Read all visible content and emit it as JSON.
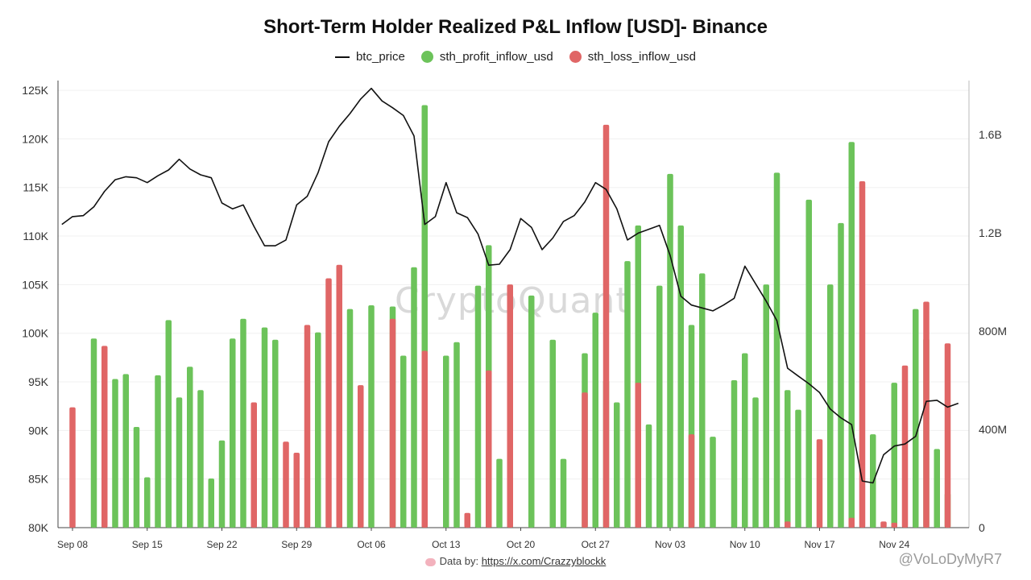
{
  "chart_data": {
    "type": "bar",
    "title": "Short-Term Holder Realized P&L Inflow [USD]- Binance",
    "legend": {
      "position": "top-center",
      "items": [
        {
          "label": "btc_price",
          "kind": "line",
          "color": "#111111"
        },
        {
          "label": "sth_profit_inflow_usd",
          "kind": "dot",
          "color": "#6cc35a"
        },
        {
          "label": "sth_loss_inflow_usd",
          "kind": "dot",
          "color": "#e06666"
        }
      ]
    },
    "y_left": {
      "ylim": [
        80000,
        126000
      ],
      "ticks": [
        80000,
        85000,
        90000,
        95000,
        100000,
        105000,
        110000,
        115000,
        120000,
        125000
      ],
      "tick_labels": [
        "80K",
        "85K",
        "90K",
        "95K",
        "100K",
        "105K",
        "110K",
        "115K",
        "120K",
        "125K"
      ]
    },
    "y_right": {
      "ylim": [
        0,
        1820000000
      ],
      "ticks": [
        0,
        400000000,
        800000000,
        1200000000,
        1600000000
      ],
      "tick_labels": [
        "0",
        "400M",
        "800M",
        "1.2B",
        "1.6B"
      ]
    },
    "x": {
      "start": "2025-09-08",
      "end": "2025-11-30",
      "ticks": [
        {
          "day": 0,
          "label": "Sep 08"
        },
        {
          "day": 7,
          "label": "Sep 15"
        },
        {
          "day": 14,
          "label": "Sep 22"
        },
        {
          "day": 21,
          "label": "Sep 29"
        },
        {
          "day": 28,
          "label": "Oct 06"
        },
        {
          "day": 35,
          "label": "Oct 13"
        },
        {
          "day": 42,
          "label": "Oct 20"
        },
        {
          "day": 49,
          "label": "Oct 27"
        },
        {
          "day": 56,
          "label": "Nov 03"
        },
        {
          "day": 63,
          "label": "Nov 10"
        },
        {
          "day": 70,
          "label": "Nov 17"
        },
        {
          "day": 77,
          "label": "Nov 24"
        }
      ]
    },
    "grid": true,
    "series": [
      {
        "name": "btc_price",
        "type": "line",
        "color": "#111111",
        "axis": "left",
        "values": [
          111200,
          112000,
          112100,
          113000,
          114600,
          115800,
          116100,
          116000,
          115500,
          116200,
          116800,
          117900,
          116900,
          116300,
          116000,
          113400,
          112800,
          113200,
          111000,
          109000,
          109000,
          109600,
          113200,
          114100,
          116500,
          119700,
          121300,
          122600,
          124100,
          125200,
          123900,
          123200,
          122400,
          120300,
          111200,
          112000,
          115500,
          112400,
          111900,
          110200,
          107000,
          107100,
          108600,
          111800,
          110900,
          108600,
          109800,
          111500,
          112100,
          113500,
          115500,
          114800,
          112800,
          109600,
          110300,
          110700,
          111100,
          108000,
          103800,
          102900,
          102600,
          102300,
          102900,
          103600,
          106900,
          105100,
          103300,
          101300,
          96400,
          95600,
          94800,
          93900,
          92200,
          91300,
          90600,
          84800,
          84600,
          87500,
          88400,
          88600,
          89400,
          93000,
          93100,
          92400,
          92800
        ],
        "note": "daily values from Sep 07 through Nov 30"
      },
      {
        "name": "sth_profit_inflow_usd",
        "type": "bar",
        "color": "#6cc35a",
        "axis": "right",
        "values": [
          0,
          0,
          770000000,
          0,
          605000000,
          625000000,
          410000000,
          205000000,
          620000000,
          845000000,
          530000000,
          655000000,
          560000000,
          200000000,
          355000000,
          770000000,
          850000000,
          0,
          815000000,
          765000000,
          0,
          0,
          0,
          795000000,
          0,
          0,
          890000000,
          0,
          905000000,
          0,
          900000000,
          700000000,
          1060000000,
          1720000000,
          0,
          700000000,
          755000000,
          0,
          985000000,
          1150000000,
          280000000,
          250000000,
          0,
          945000000,
          0,
          765000000,
          280000000,
          0,
          710000000,
          875000000,
          600000000,
          510000000,
          1085000000,
          1230000000,
          420000000,
          985000000,
          1440000000,
          1230000000,
          825000000,
          1035000000,
          370000000,
          0,
          600000000,
          710000000,
          530000000,
          990000000,
          1445000000,
          560000000,
          480000000,
          1335000000,
          0,
          990000000,
          1240000000,
          1570000000,
          0,
          380000000,
          0,
          590000000,
          0,
          890000000,
          770000000,
          320000000,
          140000000
        ],
        "note": "daily values from Sep 08 through Nov 29"
      },
      {
        "name": "sth_loss_inflow_usd",
        "type": "bar",
        "color": "#e06666",
        "axis": "right",
        "values": [
          490000000,
          0,
          0,
          740000000,
          0,
          0,
          0,
          0,
          0,
          0,
          0,
          0,
          0,
          0,
          0,
          0,
          0,
          510000000,
          0,
          0,
          350000000,
          305000000,
          825000000,
          0,
          1015000000,
          1070000000,
          0,
          0,
          0,
          0,
          0,
          0,
          0,
          0,
          0,
          0,
          0,
          0,
          0,
          0,
          0,
          0,
          0,
          0,
          0,
          0,
          0,
          0,
          0,
          0,
          0,
          0,
          0,
          0,
          0,
          0,
          0,
          0,
          0,
          0,
          0,
          0,
          0,
          0,
          0,
          0,
          0,
          0,
          0,
          0,
          0,
          0,
          0,
          0,
          0,
          0,
          0,
          0,
          0,
          0,
          0,
          0,
          0,
          0
        ],
        "overrides": [
          {
            "day": 26,
            "value": 0
          },
          {
            "day": 27,
            "value": 580000000
          },
          {
            "day": 28,
            "value": 0
          },
          {
            "day": 30,
            "value": 850000000
          },
          {
            "day": 33,
            "value": 720000000
          },
          {
            "day": 37,
            "value": 60000000
          },
          {
            "day": 39,
            "value": 640000000
          },
          {
            "day": 41,
            "value": 990000000
          },
          {
            "day": 48,
            "value": 550000000
          },
          {
            "day": 50,
            "value": 1640000000
          },
          {
            "day": 53,
            "value": 590000000
          },
          {
            "day": 58,
            "value": 380000000
          },
          {
            "day": 67,
            "value": 25000000
          },
          {
            "day": 70,
            "value": 360000000
          },
          {
            "day": 73,
            "value": 40000000
          },
          {
            "day": 74,
            "value": 1410000000
          },
          {
            "day": 76,
            "value": 25000000
          },
          {
            "day": 77,
            "value": 20000000
          },
          {
            "day": 78,
            "value": 660000000
          },
          {
            "day": 80,
            "value": 920000000
          },
          {
            "day": 82,
            "value": 750000000
          }
        ],
        "note": "daily values from Sep 08 through Nov 29"
      }
    ]
  },
  "watermark": "CryptoQuant",
  "footer": {
    "prefix": "Data by: ",
    "link": "https://x.com/Crazzyblockk"
  },
  "credit": "@VoLoDyMyR7"
}
